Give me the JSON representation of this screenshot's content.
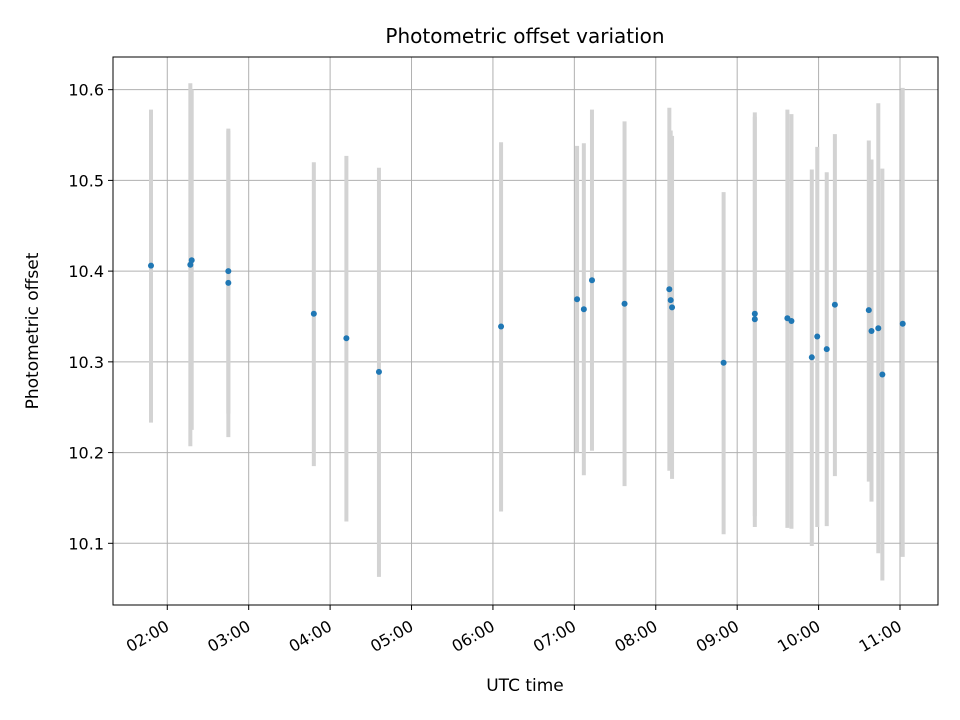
{
  "chart_data": {
    "type": "scatter",
    "title": "Photometric offset variation",
    "xlabel": "UTC time",
    "ylabel": "Photometric offset",
    "grid": true,
    "xlim": [
      "01:20",
      "11:28"
    ],
    "ylim": [
      10.032,
      10.636
    ],
    "xticks": [
      "02:00",
      "03:00",
      "04:00",
      "05:00",
      "06:00",
      "07:00",
      "08:00",
      "09:00",
      "10:00",
      "11:00"
    ],
    "yticks": [
      10.1,
      10.2,
      10.3,
      10.4,
      10.5,
      10.6
    ],
    "colors": {
      "marker": "#1f77b4",
      "errorbar": "#d3d3d3",
      "grid": "#b0b0b0"
    },
    "points": [
      {
        "time": "01:48",
        "y": 10.406,
        "lo": 10.233,
        "hi": 10.578
      },
      {
        "time": "02:17",
        "y": 10.407,
        "lo": 10.207,
        "hi": 10.607
      },
      {
        "time": "02:18",
        "y": 10.412,
        "lo": 10.225,
        "hi": 10.6
      },
      {
        "time": "02:45",
        "y": 10.387,
        "lo": 10.217,
        "hi": 10.557
      },
      {
        "time": "02:45",
        "y": 10.4,
        "lo": 10.243,
        "hi": 10.555
      },
      {
        "time": "03:48",
        "y": 10.353,
        "lo": 10.185,
        "hi": 10.52
      },
      {
        "time": "04:12",
        "y": 10.326,
        "lo": 10.124,
        "hi": 10.527
      },
      {
        "time": "04:36",
        "y": 10.289,
        "lo": 10.063,
        "hi": 10.514
      },
      {
        "time": "06:06",
        "y": 10.339,
        "lo": 10.135,
        "hi": 10.542
      },
      {
        "time": "07:02",
        "y": 10.369,
        "lo": 10.2,
        "hi": 10.538
      },
      {
        "time": "07:07",
        "y": 10.358,
        "lo": 10.175,
        "hi": 10.541
      },
      {
        "time": "07:13",
        "y": 10.39,
        "lo": 10.202,
        "hi": 10.578
      },
      {
        "time": "07:37",
        "y": 10.364,
        "lo": 10.163,
        "hi": 10.565
      },
      {
        "time": "08:10",
        "y": 10.38,
        "lo": 10.18,
        "hi": 10.58
      },
      {
        "time": "08:11",
        "y": 10.368,
        "lo": 10.185,
        "hi": 10.555
      },
      {
        "time": "08:12",
        "y": 10.36,
        "lo": 10.171,
        "hi": 10.549
      },
      {
        "time": "08:50",
        "y": 10.299,
        "lo": 10.11,
        "hi": 10.487
      },
      {
        "time": "09:13",
        "y": 10.347,
        "lo": 10.118,
        "hi": 10.575
      },
      {
        "time": "09:13",
        "y": 10.353,
        "lo": 10.13,
        "hi": 10.57
      },
      {
        "time": "09:37",
        "y": 10.348,
        "lo": 10.117,
        "hi": 10.578
      },
      {
        "time": "09:40",
        "y": 10.345,
        "lo": 10.116,
        "hi": 10.573
      },
      {
        "time": "09:55",
        "y": 10.305,
        "lo": 10.097,
        "hi": 10.512
      },
      {
        "time": "09:59",
        "y": 10.328,
        "lo": 10.118,
        "hi": 10.537
      },
      {
        "time": "10:06",
        "y": 10.314,
        "lo": 10.119,
        "hi": 10.509
      },
      {
        "time": "10:12",
        "y": 10.363,
        "lo": 10.174,
        "hi": 10.551
      },
      {
        "time": "10:37",
        "y": 10.357,
        "lo": 10.168,
        "hi": 10.544
      },
      {
        "time": "10:39",
        "y": 10.334,
        "lo": 10.146,
        "hi": 10.523
      },
      {
        "time": "10:44",
        "y": 10.337,
        "lo": 10.089,
        "hi": 10.585
      },
      {
        "time": "10:47",
        "y": 10.286,
        "lo": 10.059,
        "hi": 10.513
      },
      {
        "time": "11:02",
        "y": 10.342,
        "lo": 10.085,
        "hi": 10.602
      }
    ]
  }
}
